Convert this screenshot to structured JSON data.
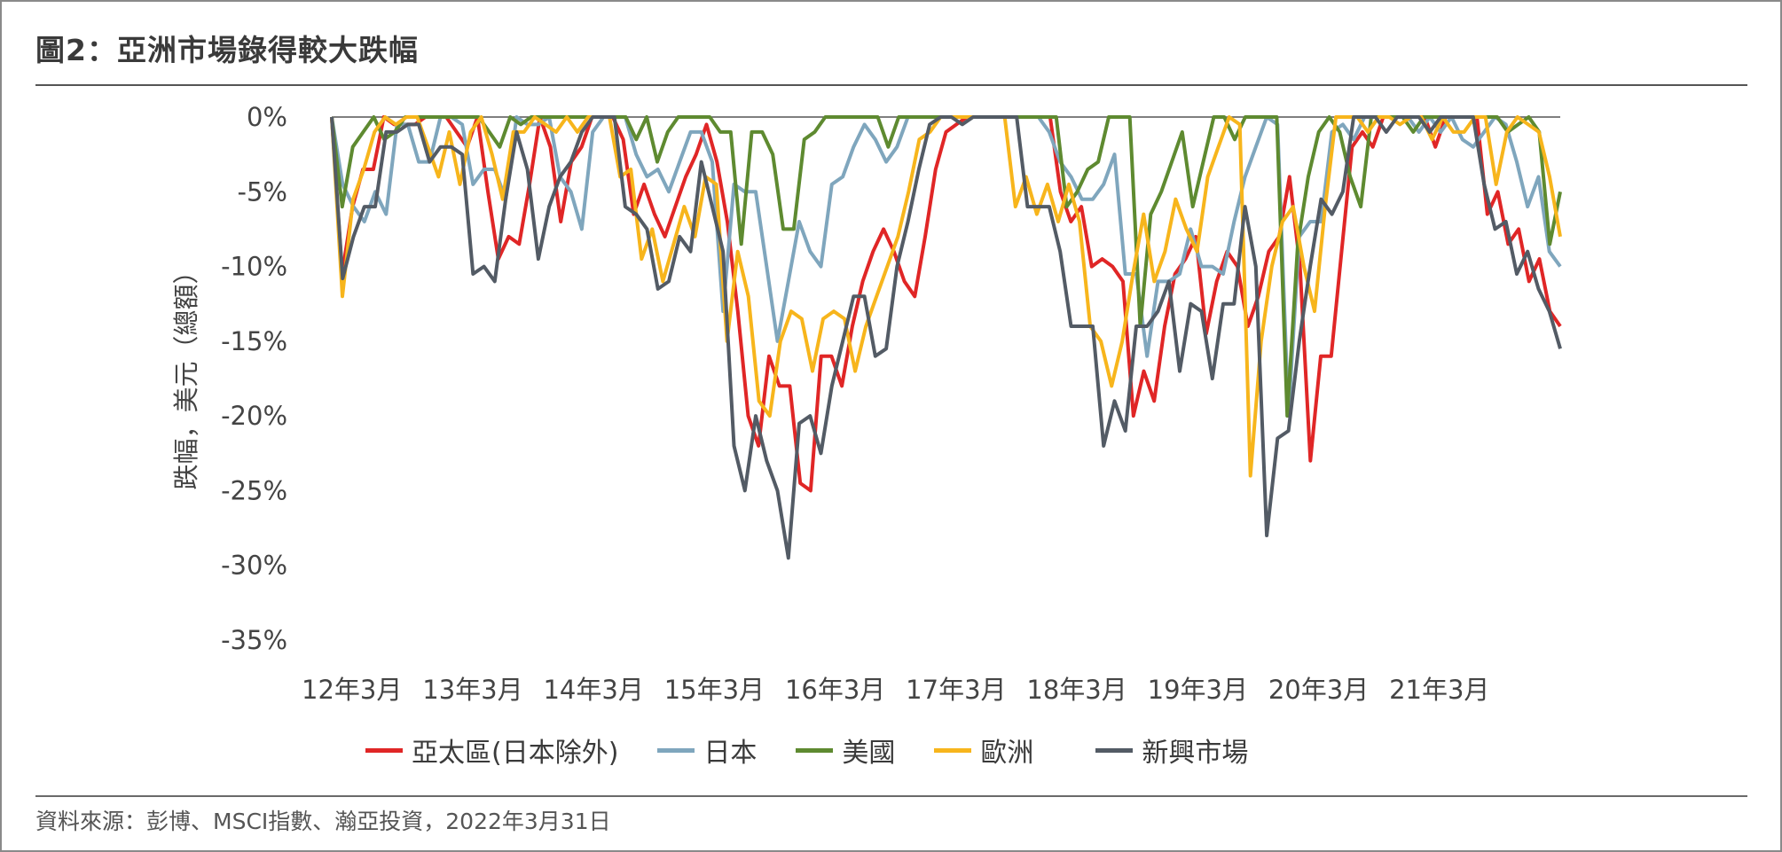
{
  "title": "圖2：亞洲市場錄得較大跌幅",
  "source": "資料來源：彭博、MSCI指數、瀚亞投資，2022年3月31日",
  "chart_data": {
    "type": "line",
    "ylabel": "跌幅，美元（總額）",
    "ylim": [
      -35,
      0
    ],
    "yticks": [
      "0%",
      "-5%",
      "-10%",
      "-15%",
      "-20%",
      "-25%",
      "-30%",
      "-35%"
    ],
    "ytick_values": [
      0,
      -5,
      -10,
      -15,
      -20,
      -25,
      -30,
      -35
    ],
    "x_start": "2012-01",
    "x_end": "2022-03",
    "xtick_labels": [
      "12年3月",
      "13年3月",
      "14年3月",
      "15年3月",
      "16年3月",
      "17年3月",
      "18年3月",
      "19年3月",
      "20年3月",
      "21年3月"
    ],
    "grid": false,
    "legend_position": "bottom",
    "series": [
      {
        "name": "亞太區(日本除外)",
        "color": "#e02626",
        "values": [
          0,
          -10.5,
          -6,
          -3.5,
          -3.5,
          0,
          -0.5,
          -0.5,
          -0.5,
          0,
          0,
          0,
          -1,
          -2,
          0,
          -5,
          -9.5,
          -8,
          -8.5,
          -4.5,
          0,
          -2,
          -7,
          -3,
          -2,
          0,
          0,
          0,
          -1.5,
          -6.5,
          -4.5,
          -6.5,
          -8,
          -6,
          -4,
          -2.5,
          -0.5,
          -3,
          -7,
          -13,
          -20,
          -22,
          -16,
          -18,
          -18,
          -24.5,
          -25,
          -16,
          -16,
          -18,
          -14,
          -11,
          -9,
          -7.5,
          -9,
          -11,
          -12,
          -8,
          -3.5,
          -1,
          -0.5,
          0,
          0,
          0,
          0,
          0,
          0,
          0,
          0,
          0,
          -5,
          -7,
          -6,
          -10,
          -9.5,
          -10,
          -11,
          -20,
          -17,
          -19,
          -14,
          -10.5,
          -9.5,
          -8,
          -14.5,
          -11,
          -9,
          -10,
          -14,
          -12,
          -9,
          -8,
          -4,
          -10,
          -23,
          -16,
          -16,
          -9,
          -2,
          -1,
          -2,
          0,
          0,
          0,
          0,
          0,
          -2,
          0,
          0,
          0,
          0,
          -6.5,
          -5,
          -8.5,
          -7.5,
          -11,
          -9.5,
          -13,
          -14
        ]
      },
      {
        "name": "日本",
        "color": "#7fa6bd",
        "values": [
          0,
          -4.5,
          -6,
          -7,
          -5,
          -6.5,
          -0.5,
          -0.5,
          -3,
          -3,
          0,
          0,
          -0.5,
          -4.5,
          -3.5,
          -3.5,
          -5.5,
          0,
          -0.5,
          -0.5,
          0,
          -4,
          -5,
          -7.5,
          -1,
          0,
          0,
          0,
          -2.5,
          -4,
          -3.5,
          -5,
          -3,
          -1,
          -1,
          -3,
          -13,
          -4.5,
          -5,
          -5,
          -10,
          -15,
          -11,
          -7,
          -9,
          -10,
          -4.5,
          -4,
          -2,
          -0.5,
          -1.5,
          -3,
          -2,
          0,
          0,
          0,
          0,
          0,
          0,
          0,
          0,
          0,
          0,
          0,
          0,
          0,
          -1,
          -3,
          -4,
          -5.5,
          -5.5,
          -4.5,
          -2.5,
          -10.5,
          -10.5,
          -16,
          -11,
          -11,
          -10.5,
          -7.5,
          -10,
          -10,
          -10.5,
          -7,
          -4,
          -2,
          0,
          -0.5,
          -20,
          -8,
          -7,
          -7,
          -1,
          -0.5,
          -1.5,
          0,
          0,
          0,
          0,
          0,
          -1,
          0,
          -1,
          0,
          -1.5,
          -2,
          -1,
          0,
          -0.5,
          -3,
          -6,
          -4,
          -9,
          -10
        ]
      },
      {
        "name": "美國",
        "color": "#5e8a30",
        "values": [
          0,
          -6,
          -2,
          -1,
          0,
          -1.5,
          -1,
          0,
          0,
          0,
          0,
          0,
          0,
          0,
          0,
          -1,
          -2,
          0,
          -0.5,
          0,
          0,
          0,
          0,
          0,
          0,
          0,
          0,
          0,
          0,
          -1.5,
          0,
          -3,
          -1,
          0,
          0,
          0,
          0,
          -1,
          -1,
          -8.5,
          -1,
          -1,
          -2.5,
          -7.5,
          -7.5,
          -1.5,
          -1,
          0,
          0,
          0,
          0,
          0,
          0,
          -2,
          0,
          0,
          0,
          0,
          0,
          0,
          0,
          0,
          0,
          0,
          0,
          0,
          0,
          0,
          0,
          0,
          -6,
          -5,
          -3.5,
          -3,
          0,
          0,
          0,
          -14,
          -6.5,
          -5,
          -3,
          -1,
          -6,
          -3,
          0,
          0,
          -1.5,
          0,
          0,
          0,
          0,
          -20,
          -8.5,
          -4,
          -1,
          0,
          -1,
          -4,
          -6,
          0,
          0,
          0,
          0,
          -1,
          0,
          0,
          0,
          0,
          0,
          0,
          0,
          0,
          -1,
          -0.5,
          0,
          -1,
          -8.5,
          -5
        ]
      },
      {
        "name": "歐洲",
        "color": "#f7b51c",
        "values": [
          0,
          -12,
          -5.5,
          -3.5,
          -1,
          0,
          -0.5,
          0,
          0,
          -2,
          -4,
          -1,
          -4.5,
          -1,
          0,
          -2.5,
          -5.5,
          -1,
          -1,
          0,
          -0.5,
          -1,
          0,
          -1,
          0,
          0,
          0,
          -4,
          -3.5,
          -9.5,
          -7.5,
          -11,
          -8.5,
          -6,
          -8,
          -4,
          -4.5,
          -15,
          -9,
          -12,
          -19,
          -20,
          -15,
          -13,
          -13.5,
          -17,
          -13.5,
          -13,
          -13.5,
          -17,
          -14,
          -12,
          -10,
          -8,
          -5,
          -1.5,
          -1,
          0,
          0,
          0,
          0,
          0,
          0,
          0,
          -6,
          -4,
          -6.5,
          -4.5,
          -7,
          -4.5,
          -7,
          -14,
          -15,
          -18,
          -15,
          -10.5,
          -6.5,
          -11,
          -9,
          -5.5,
          -7.5,
          -9,
          -4,
          -2,
          0,
          -0.5,
          -24,
          -15,
          -10,
          -7,
          -6,
          -10,
          -13,
          -6,
          0,
          0,
          0,
          -1,
          0,
          0,
          -0.5,
          0,
          0,
          -1.5,
          0,
          -1,
          -1,
          0,
          0,
          -4.5,
          -1,
          0,
          -0.5,
          -1,
          -4,
          -8
        ]
      },
      {
        "name": "新興市場",
        "color": "#535b65",
        "values": [
          0,
          -10.8,
          -8,
          -6,
          -6,
          -1,
          -1,
          -0.5,
          -0.5,
          -3,
          -2,
          -2,
          -2.5,
          -10.5,
          -10,
          -11,
          -5.5,
          -1,
          -3.5,
          -9.5,
          -6,
          -4,
          -3,
          -1,
          0,
          0,
          0,
          -6,
          -6.5,
          -7.5,
          -11.5,
          -11,
          -8,
          -9,
          -3,
          -6,
          -9,
          -22,
          -25,
          -20,
          -23,
          -25,
          -29.5,
          -20.5,
          -20,
          -22.5,
          -18,
          -15,
          -12,
          -12,
          -16,
          -15.5,
          -10,
          -7,
          -3.5,
          -0.5,
          0,
          0,
          -0.5,
          0,
          0,
          0,
          0,
          0,
          -6,
          -6,
          -6,
          -9,
          -14,
          -14,
          -14,
          -22,
          -19,
          -21,
          -14,
          -14,
          -13,
          -11,
          -17,
          -12.5,
          -13,
          -17.5,
          -12.5,
          -12.5,
          -6,
          -10,
          -28,
          -21.5,
          -21,
          -15,
          -10,
          -5.5,
          -6.5,
          -5,
          0,
          0,
          0,
          -1,
          0,
          0,
          0,
          -1,
          0,
          0,
          0,
          0,
          -4.5,
          -7.5,
          -7,
          -10.5,
          -9,
          -11.5,
          -13,
          -15.5
        ]
      }
    ]
  }
}
